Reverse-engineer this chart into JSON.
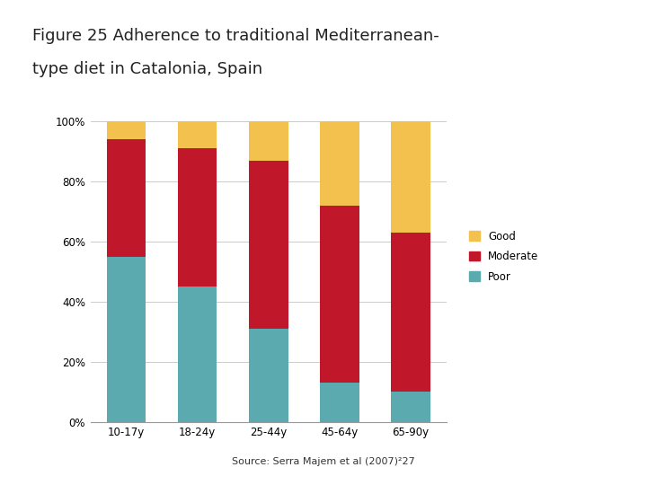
{
  "title_line1": "Figure 25 Adherence to traditional Mediterranean-",
  "title_line2": "type diet in Catalonia, Spain",
  "categories": [
    "10-17y",
    "18-24y",
    "25-44y",
    "45-64y",
    "65-90y"
  ],
  "poor": [
    55,
    45,
    31,
    13,
    10
  ],
  "moderate": [
    39,
    46,
    56,
    59,
    53
  ],
  "good": [
    6,
    9,
    13,
    28,
    37
  ],
  "color_poor": "#5BAAB0",
  "color_moderate": "#C0182A",
  "color_good": "#F2C14E",
  "source_text": "Source: Serra Majem et al (2007)²27",
  "source_bg": "#E0E0E0",
  "ylabel_ticks": [
    "0%",
    "20%",
    "40%",
    "60%",
    "80%",
    "100%"
  ],
  "bar_width": 0.55,
  "fig_bg": "#FFFFFF"
}
